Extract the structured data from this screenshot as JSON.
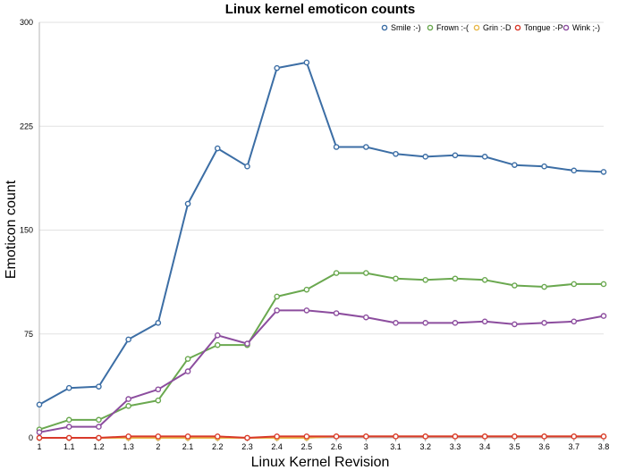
{
  "chart_data": {
    "type": "line",
    "title": "Linux kernel emoticon counts",
    "xlabel": "Linux Kernel Revision",
    "ylabel": "Emoticon count",
    "categories": [
      "1",
      "1.1",
      "1.2",
      "1.3",
      "2",
      "2.1",
      "2.2",
      "2.3",
      "2.4",
      "2.5",
      "2.6",
      "3",
      "3.1",
      "3.2",
      "3.3",
      "3.4",
      "3.5",
      "3.6",
      "3.7",
      "3.8"
    ],
    "ylim": [
      0,
      300
    ],
    "yticks": [
      "0",
      "75",
      "150",
      "225",
      "300"
    ],
    "grid": true,
    "legend_position": "top-right",
    "series": [
      {
        "name": "Smile :-)",
        "color": "#3c6ea5",
        "values": [
          24,
          36,
          37,
          71,
          83,
          169,
          209,
          196,
          267,
          271,
          210,
          210,
          205,
          203,
          204,
          203,
          197,
          196,
          193,
          192
        ]
      },
      {
        "name": "Frown :-(",
        "color": "#6aa84f",
        "values": [
          6,
          13,
          13,
          23,
          27,
          57,
          67,
          67,
          102,
          107,
          119,
          119,
          115,
          114,
          115,
          114,
          110,
          109,
          111,
          111
        ]
      },
      {
        "name": "Grin :-D",
        "color": "#e8b84a",
        "values": [
          0,
          0,
          0,
          0,
          0,
          0,
          0,
          0,
          0,
          0,
          1,
          1,
          1,
          1,
          1,
          1,
          1,
          1,
          1,
          1
        ]
      },
      {
        "name": "Tongue :-P",
        "color": "#d93a2b",
        "values": [
          0,
          0,
          0,
          1,
          1,
          1,
          1,
          0,
          1,
          1,
          1,
          1,
          1,
          1,
          1,
          1,
          1,
          1,
          1,
          1
        ]
      },
      {
        "name": "Wink ;-)",
        "color": "#8c4d9e",
        "values": [
          4,
          8,
          8,
          28,
          35,
          48,
          74,
          68,
          92,
          92,
          90,
          87,
          83,
          83,
          83,
          84,
          82,
          83,
          84,
          88
        ]
      }
    ]
  }
}
